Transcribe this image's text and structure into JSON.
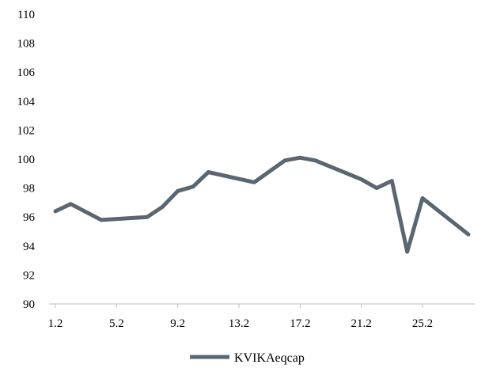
{
  "chart_data": {
    "type": "line",
    "title": "",
    "xlabel": "",
    "ylabel": "",
    "ylim": [
      90,
      110
    ],
    "yticks": [
      "90",
      "92",
      "94",
      "96",
      "98",
      "100",
      "102",
      "104",
      "106",
      "108",
      "110"
    ],
    "xticks": [
      "1.2",
      "5.2",
      "9.2",
      "13.2",
      "17.2",
      "21.2",
      "25.2"
    ],
    "xtick_positions": [
      1,
      5,
      9,
      13,
      17,
      21,
      25
    ],
    "xlim": [
      1,
      28
    ],
    "grid": false,
    "legend": "bottom",
    "series": [
      {
        "name": "KVIKAeqcap",
        "color": "#5a6770",
        "x": [
          1,
          2,
          4,
          7,
          8,
          9,
          10,
          11,
          14,
          16,
          17,
          18,
          21,
          22,
          23,
          24,
          25,
          28
        ],
        "y": [
          96.4,
          96.9,
          95.8,
          96.0,
          96.7,
          97.8,
          98.1,
          99.1,
          98.4,
          99.9,
          100.1,
          99.9,
          98.6,
          98.0,
          98.5,
          93.6,
          97.3,
          94.8
        ]
      }
    ]
  }
}
